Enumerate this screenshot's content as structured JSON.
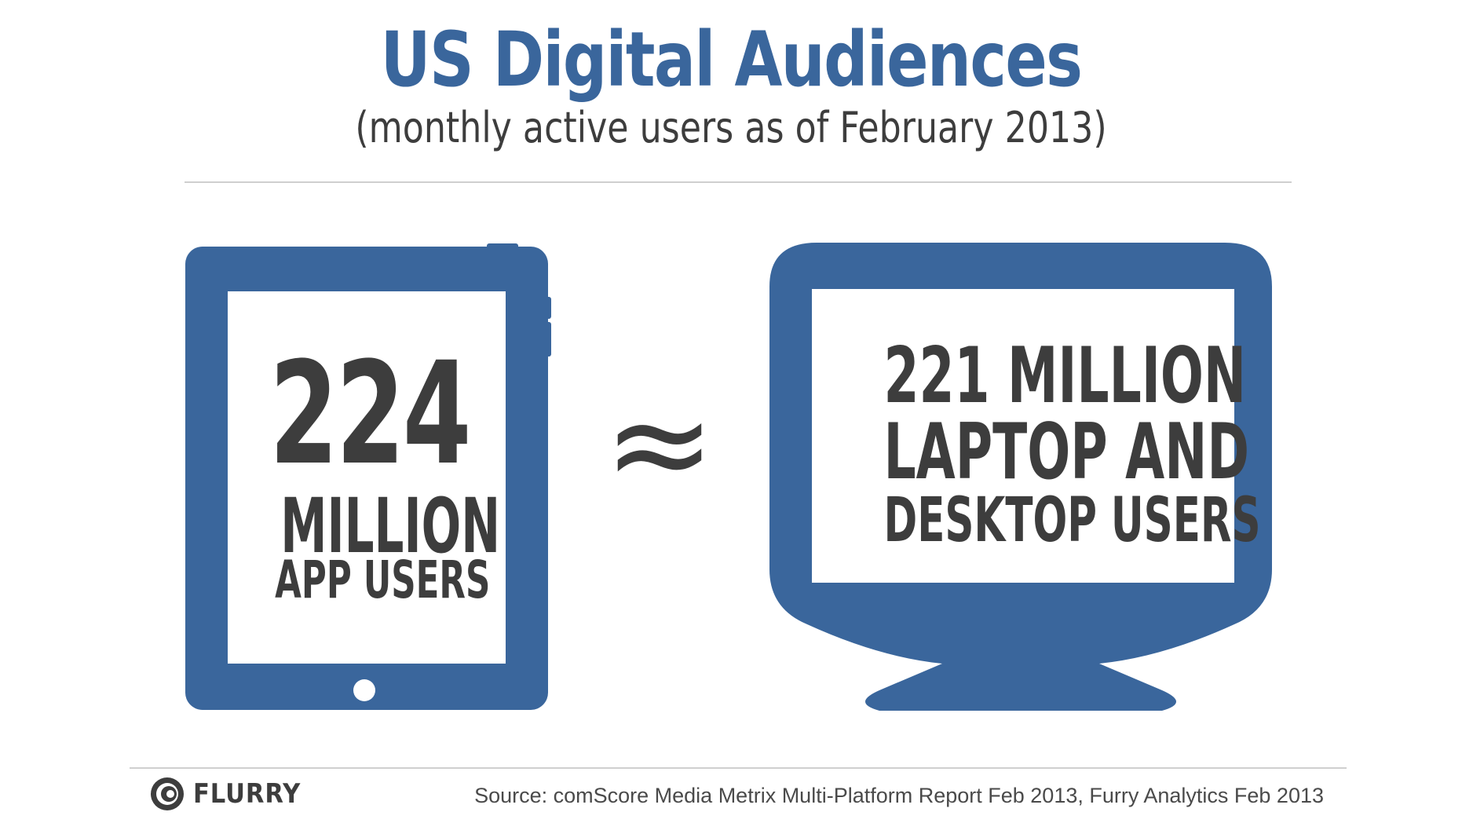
{
  "header": {
    "title": "US Digital Audiences",
    "subtitle": "(monthly active users as of February 2013)"
  },
  "tablet": {
    "number": "224",
    "unit": "MILLION",
    "label": "APP USERS"
  },
  "comparison_symbol": "≈",
  "monitor": {
    "line1": "221 MILLION",
    "line2": "LAPTOP AND",
    "line3": "DESKTOP USERS"
  },
  "footer": {
    "brand": "FLURRY",
    "source": "Source: comScore Media Metrix Multi-Platform Report Feb 2013, Furry Analytics Feb 2013"
  },
  "colors": {
    "accent_blue": "#3a669c",
    "text_dark": "#3d3d3d",
    "rule_gray": "#cfcfcf"
  },
  "icons": {
    "tablet": "tablet-icon",
    "monitor": "monitor-icon",
    "logo": "flurry-logo-icon"
  }
}
